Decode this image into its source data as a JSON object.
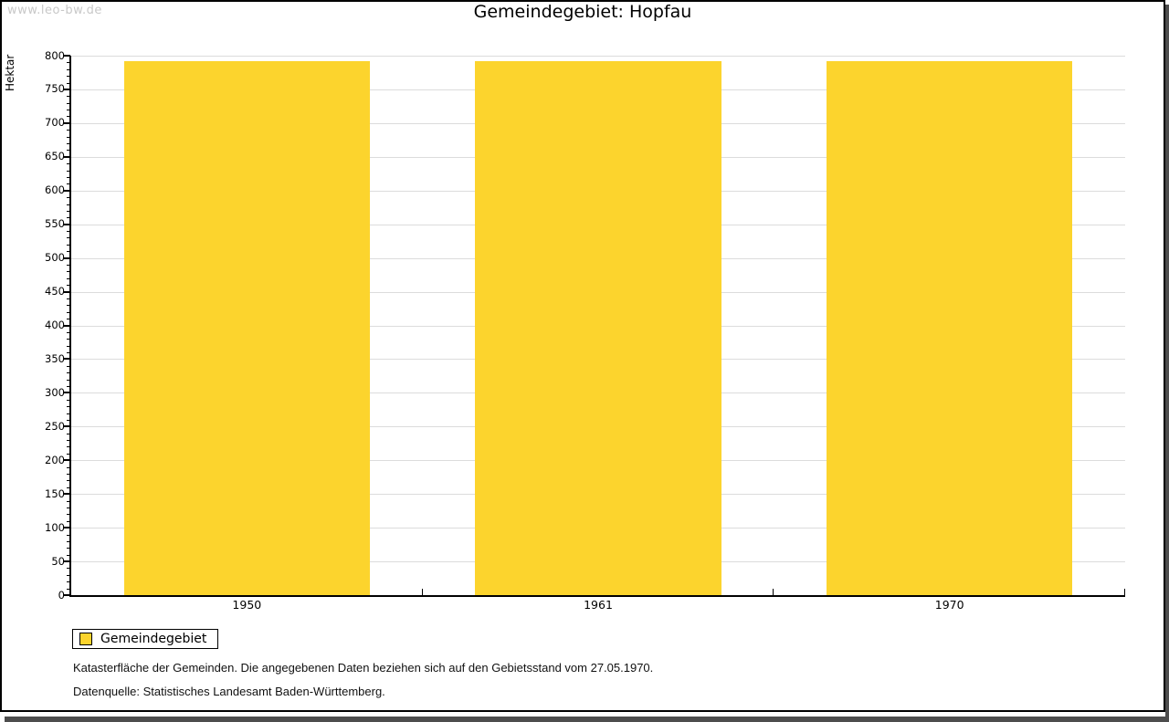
{
  "watermark": "www.leo-bw.de",
  "title": "Gemeindegebiet: Hopfau",
  "legend": {
    "items": [
      {
        "label": "Gemeindegebiet",
        "color": "#FCD42D"
      }
    ]
  },
  "footnotes": [
    "Katasterfläche der Gemeinden. Die angegebenen Daten beziehen sich auf den Gebietsstand vom 27.05.1970.",
    "Datenquelle: Statistisches Landesamt Baden-Württemberg."
  ],
  "chart_data": {
    "type": "bar",
    "title": "Gemeindegebiet: Hopfau",
    "xlabel": "",
    "ylabel": "Hektar",
    "categories": [
      "1950",
      "1961",
      "1970"
    ],
    "series": [
      {
        "name": "Gemeindegebiet",
        "values": [
          792,
          792,
          792
        ],
        "color": "#FCD42D"
      }
    ],
    "ylim": [
      0,
      800
    ],
    "y_major_step": 50,
    "y_minor_step": 10,
    "grid": true,
    "legend_position": "bottom-left",
    "colors": {
      "bar": "#FCD42D",
      "gridline": "#dcdcdc",
      "axis": "#000000",
      "watermark": "#c8c8c8",
      "frame_shadow": "#4d4d4d"
    }
  }
}
